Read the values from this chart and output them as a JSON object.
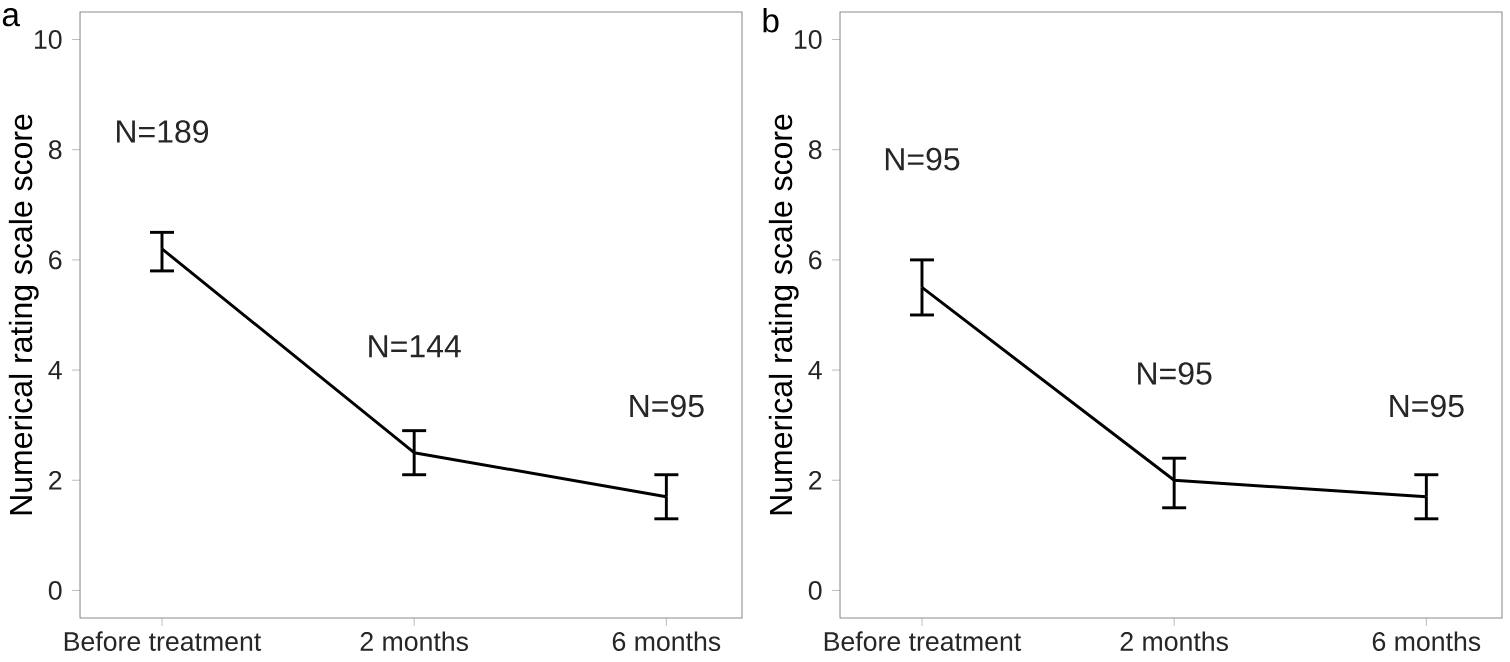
{
  "chart_data": [
    {
      "type": "line",
      "title": "a",
      "ylabel": "Numerical rating scale score",
      "categories": [
        "Before treatment",
        "2 months",
        "6 months"
      ],
      "values": [
        6.2,
        2.5,
        1.7
      ],
      "errors": [
        [
          5.8,
          6.5
        ],
        [
          2.1,
          2.9
        ],
        [
          1.3,
          2.1
        ]
      ],
      "color": "#000000",
      "marker": "none",
      "ylim": [
        -0.5,
        10.5
      ],
      "yticks": [
        0,
        2,
        4,
        6,
        8,
        10
      ],
      "annotations": [
        "N=189",
        "N=144",
        "N=95"
      ]
    },
    {
      "type": "line",
      "title": "b",
      "ylabel": "Numerical rating scale score",
      "categories": [
        "Before treatment",
        "2 months",
        "6 months"
      ],
      "values": [
        5.5,
        2.0,
        1.7
      ],
      "errors": [
        [
          5.0,
          6.0
        ],
        [
          1.5,
          2.4
        ],
        [
          1.3,
          2.1
        ]
      ],
      "color": "#000000",
      "marker": "none",
      "ylim": [
        -0.5,
        10.5
      ],
      "yticks": [
        0,
        2,
        4,
        6,
        8,
        10
      ],
      "annotations": [
        "N=95",
        "N=95",
        "N=95"
      ]
    }
  ]
}
